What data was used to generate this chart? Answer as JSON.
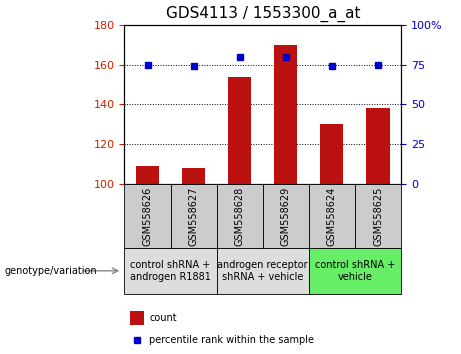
{
  "title": "GDS4113 / 1553300_a_at",
  "samples": [
    "GSM558626",
    "GSM558627",
    "GSM558628",
    "GSM558629",
    "GSM558624",
    "GSM558625"
  ],
  "counts": [
    109,
    108,
    154,
    170,
    130,
    138
  ],
  "percentiles": [
    75,
    74,
    80,
    80,
    74,
    75
  ],
  "left_ylim": [
    100,
    180
  ],
  "left_yticks": [
    100,
    120,
    140,
    160,
    180
  ],
  "right_ylim": [
    0,
    100
  ],
  "right_yticks": [
    0,
    25,
    50,
    75,
    100
  ],
  "right_yticklabels": [
    "0",
    "25",
    "50",
    "75",
    "100%"
  ],
  "bar_color": "#bb1111",
  "dot_color": "#0000cc",
  "bar_width": 0.5,
  "groups": [
    {
      "label": "control shRNA +\nandrogen R1881",
      "indices": [
        0,
        1
      ],
      "bg_color": "#dddddd"
    },
    {
      "label": "androgen receptor\nshRNA + vehicle",
      "indices": [
        2,
        3
      ],
      "bg_color": "#dddddd"
    },
    {
      "label": "control shRNA +\nvehicle",
      "indices": [
        4,
        5
      ],
      "bg_color": "#66ee66"
    }
  ],
  "genotype_label": "genotype/variation",
  "legend_count_label": "count",
  "legend_percentile_label": "percentile rank within the sample",
  "left_tick_color": "#cc2200",
  "right_tick_color": "#0000cc",
  "title_fontsize": 11,
  "tick_fontsize": 8,
  "sample_fontsize": 7,
  "group_fontsize": 7,
  "legend_fontsize": 7,
  "genotype_fontsize": 7
}
